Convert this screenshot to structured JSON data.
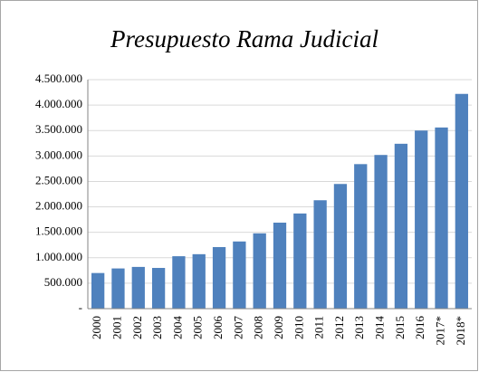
{
  "chart_data": {
    "type": "bar",
    "title": "Presupuesto Rama Judicial",
    "categories": [
      "2000",
      "2001",
      "2002",
      "2003",
      "2004",
      "2005",
      "2006",
      "2007",
      "2008",
      "2009",
      "2010",
      "2011",
      "2012",
      "2013",
      "2014",
      "2015",
      "2016",
      "2017*",
      "2018*"
    ],
    "values": [
      700000,
      790000,
      820000,
      800000,
      1030000,
      1070000,
      1210000,
      1320000,
      1480000,
      1690000,
      1870000,
      2130000,
      2450000,
      2840000,
      3020000,
      3240000,
      3500000,
      3560000,
      4220000
    ],
    "color": "#4f81bd",
    "ylim": [
      0,
      4500000
    ],
    "yticks": [
      {
        "value": 0,
        "label": "-"
      },
      {
        "value": 500000,
        "label": "500.000"
      },
      {
        "value": 1000000,
        "label": "1.000.000"
      },
      {
        "value": 1500000,
        "label": "1.500.000"
      },
      {
        "value": 2000000,
        "label": "2.000.000"
      },
      {
        "value": 2500000,
        "label": "2.500.000"
      },
      {
        "value": 3000000,
        "label": "3.000.000"
      },
      {
        "value": 3500000,
        "label": "3.500.000"
      },
      {
        "value": 4000000,
        "label": "4.000.000"
      },
      {
        "value": 4500000,
        "label": "4.500.000"
      }
    ],
    "grid": true
  }
}
